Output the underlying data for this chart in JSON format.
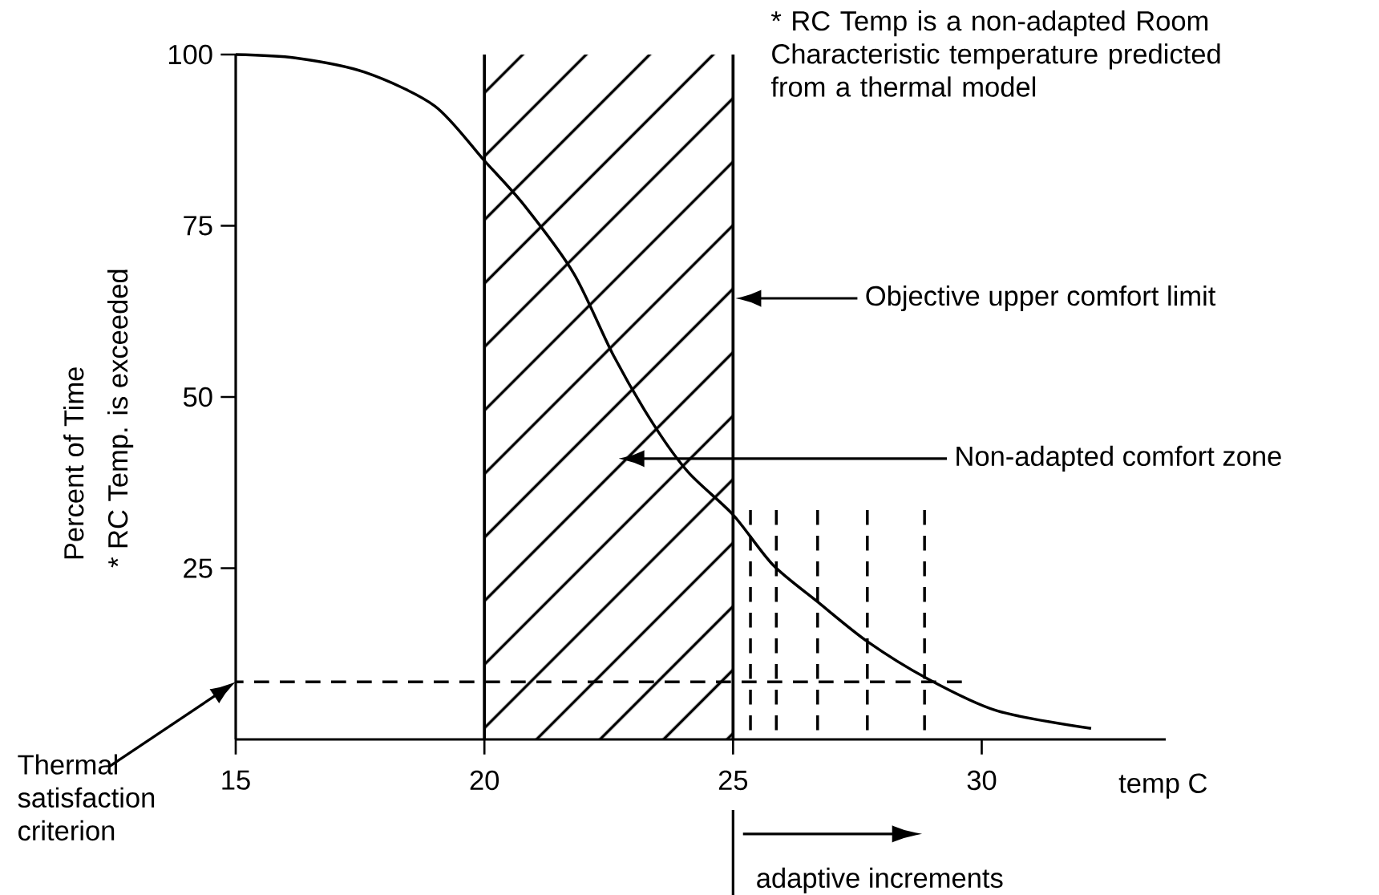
{
  "chart_data": {
    "type": "line",
    "xlabel": "temp C",
    "ylabel": "Percent of Time",
    "xlim": [
      15,
      33.7
    ],
    "ylim": [
      0,
      100
    ],
    "xticks": [
      15,
      20,
      25,
      30
    ],
    "yticks": [
      25,
      50,
      75,
      100
    ],
    "series": [
      {
        "color": "#000000",
        "line_style": "solid",
        "x": [
          15,
          16.2,
          17.6,
          19.0,
          20,
          20.8,
          21.8,
          22.6,
          23.4,
          24.1,
          25,
          25.8,
          26.7,
          27.7,
          28.9,
          30.3,
          32.2
        ],
        "values": [
          100,
          99.5,
          97.4,
          92.5,
          84.5,
          78,
          68,
          56,
          46,
          39,
          32.8,
          25.5,
          20.1,
          14.3,
          8.9,
          4.2,
          1.6
        ]
      },
      {
        "color": "#000000",
        "line_style": "dashed",
        "x": [
          15,
          29.6
        ],
        "values": [
          8.4,
          8.4
        ]
      },
      {
        "color": "#000000",
        "line_style": "dashed",
        "x": [
          25.35,
          25.35
        ],
        "values": [
          0,
          33.5
        ]
      },
      {
        "color": "#000000",
        "line_style": "dashed",
        "x": [
          25.87,
          25.87
        ],
        "values": [
          0,
          33.5
        ]
      },
      {
        "color": "#000000",
        "line_style": "dashed",
        "x": [
          26.7,
          26.7
        ],
        "values": [
          0,
          33.5
        ]
      },
      {
        "color": "#000000",
        "line_style": "dashed",
        "x": [
          27.7,
          27.7
        ],
        "values": [
          0,
          33.5
        ]
      },
      {
        "color": "#000000",
        "line_style": "dashed",
        "x": [
          28.85,
          28.85
        ],
        "values": [
          0,
          33.5
        ]
      }
    ],
    "ref_lines": [
      {
        "axis": "x",
        "value": 20
      },
      {
        "axis": "x",
        "value": 25,
        "label": "Objective upper comfort limit"
      }
    ],
    "bands": [
      {
        "axis": "x",
        "from": 20,
        "to": 25,
        "label": "Non-adapted comfort zone"
      }
    ],
    "annotations": [
      "* RC Temp is a non-adapted Room Characteristic temperature predicted from a thermal model",
      "* RC Temp. is exceeded",
      "Thermal satisfaction criterion",
      "adaptive increments"
    ]
  }
}
